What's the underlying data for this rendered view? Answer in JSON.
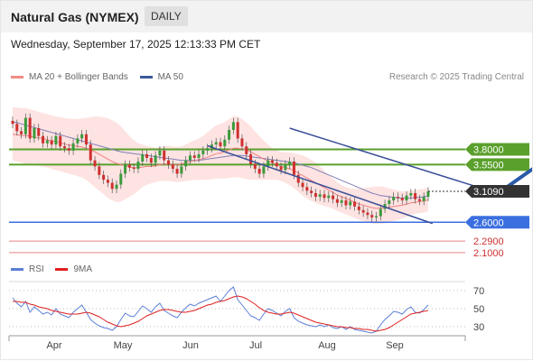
{
  "header": {
    "title": "Natural Gas (NYMEX)",
    "timeframe": "DAILY"
  },
  "datetime": "Wednesday, September 17, 2025 12:13:33 PM CET",
  "legend": {
    "items": [
      {
        "label": "MA 20 + Bollinger Bands",
        "color": "#f28b82"
      },
      {
        "label": "MA 50",
        "color": "#3c5a99"
      }
    ],
    "credit": "Research © 2025 Trading Central"
  },
  "rsi_legend": {
    "items": [
      {
        "label": "RSI",
        "color": "#5b7fd6"
      },
      {
        "label": "9MA",
        "color": "#e02020"
      }
    ]
  },
  "chart_data": [
    {
      "type": "candlestick",
      "title": "Natural Gas (NYMEX)",
      "ylim": [
        1.95,
        4.7
      ],
      "x_labels": [
        "Apr",
        "May",
        "Jun",
        "Jul",
        "Aug",
        "Sep"
      ],
      "last_price": "3.1090",
      "levels": [
        {
          "value": 3.8,
          "label": "3.8000",
          "kind": "resistance",
          "color": "#5aa02c"
        },
        {
          "value": 3.55,
          "label": "3.5500",
          "kind": "resistance",
          "color": "#5aa02c"
        },
        {
          "value": 2.6,
          "label": "2.6000",
          "kind": "support",
          "color": "#3b6fe0"
        },
        {
          "value": 2.29,
          "label": "2.2900",
          "kind": "support",
          "color": "#e05050"
        },
        {
          "value": 2.1,
          "label": "2.1000",
          "kind": "support",
          "color": "#e05050"
        }
      ],
      "close": [
        4.22,
        4.1,
        4.05,
        4.32,
        3.98,
        4.15,
        4.02,
        3.9,
        3.95,
        3.88,
        4.02,
        3.85,
        3.82,
        3.78,
        3.9,
        3.98,
        4.05,
        3.88,
        3.62,
        3.52,
        3.38,
        3.3,
        3.25,
        3.15,
        3.22,
        3.4,
        3.55,
        3.5,
        3.48,
        3.6,
        3.72,
        3.66,
        3.58,
        3.7,
        3.78,
        3.62,
        3.55,
        3.48,
        3.4,
        3.52,
        3.62,
        3.7,
        3.66,
        3.72,
        3.78,
        3.82,
        3.88,
        3.92,
        3.85,
        3.96,
        4.12,
        4.25,
        3.98,
        3.85,
        3.72,
        3.56,
        3.48,
        3.4,
        3.52,
        3.62,
        3.58,
        3.52,
        3.46,
        3.55,
        3.6,
        3.38,
        3.25,
        3.18,
        3.12,
        3.08,
        3.02,
        3.06,
        3.0,
        3.04,
        2.98,
        2.92,
        2.96,
        2.88,
        2.94,
        2.86,
        2.8,
        2.76,
        2.72,
        2.68,
        2.7,
        2.82,
        2.9,
        2.96,
        3.02,
        3.0,
        2.96,
        3.04,
        3.08,
        2.98,
        2.95,
        3.02,
        3.109
      ],
      "ma20": [
        4.05,
        4.04,
        4.03,
        4.03,
        4.02,
        4.0,
        3.99,
        3.98,
        3.96,
        3.94,
        3.93,
        3.91,
        3.89,
        3.87,
        3.86,
        3.85,
        3.84,
        3.82,
        3.79,
        3.76,
        3.72,
        3.68,
        3.64,
        3.6,
        3.57,
        3.55,
        3.53,
        3.51,
        3.5,
        3.5,
        3.51,
        3.52,
        3.52,
        3.53,
        3.55,
        3.56,
        3.56,
        3.55,
        3.55,
        3.56,
        3.58,
        3.6,
        3.62,
        3.63,
        3.65,
        3.67,
        3.7,
        3.73,
        3.74,
        3.76,
        3.79,
        3.82,
        3.82,
        3.81,
        3.79,
        3.76,
        3.72,
        3.68,
        3.64,
        3.61,
        3.58,
        3.55,
        3.52,
        3.5,
        3.48,
        3.45,
        3.41,
        3.37,
        3.33,
        3.29,
        3.25,
        3.21,
        3.17,
        3.13,
        3.09,
        3.05,
        3.02,
        2.99,
        2.96,
        2.93,
        2.9,
        2.88,
        2.86,
        2.84,
        2.83,
        2.83,
        2.84,
        2.85,
        2.86,
        2.87,
        2.88,
        2.9,
        2.92,
        2.93,
        2.94,
        2.95,
        2.97
      ],
      "bb_upper": [
        4.5,
        4.49,
        4.48,
        4.48,
        4.46,
        4.44,
        4.42,
        4.4,
        4.38,
        4.36,
        4.34,
        4.33,
        4.32,
        4.31,
        4.3,
        4.3,
        4.31,
        4.32,
        4.33,
        4.34,
        4.34,
        4.33,
        4.31,
        4.28,
        4.24,
        4.18,
        4.1,
        4.02,
        3.95,
        3.9,
        3.88,
        3.86,
        3.84,
        3.83,
        3.84,
        3.86,
        3.86,
        3.85,
        3.84,
        3.85,
        3.88,
        3.92,
        3.95,
        3.98,
        4.02,
        4.08,
        4.14,
        4.2,
        4.22,
        4.25,
        4.3,
        4.35,
        4.34,
        4.3,
        4.24,
        4.18,
        4.1,
        4.02,
        3.95,
        3.88,
        3.82,
        3.78,
        3.76,
        3.75,
        3.75,
        3.74,
        3.72,
        3.7,
        3.67,
        3.63,
        3.58,
        3.52,
        3.45,
        3.38,
        3.32,
        3.26,
        3.21,
        3.18,
        3.16,
        3.15,
        3.15,
        3.16,
        3.17,
        3.18,
        3.19,
        3.19,
        3.18,
        3.16,
        3.14,
        3.12,
        3.11,
        3.11,
        3.12,
        3.13,
        3.14,
        3.15,
        3.17
      ],
      "bb_lower": [
        3.62,
        3.6,
        3.58,
        3.56,
        3.55,
        3.54,
        3.53,
        3.52,
        3.5,
        3.48,
        3.46,
        3.44,
        3.42,
        3.4,
        3.38,
        3.36,
        3.34,
        3.3,
        3.24,
        3.18,
        3.12,
        3.06,
        3.0,
        2.96,
        2.93,
        2.94,
        2.98,
        3.02,
        3.06,
        3.12,
        3.18,
        3.22,
        3.24,
        3.26,
        3.28,
        3.28,
        3.28,
        3.27,
        3.26,
        3.27,
        3.28,
        3.29,
        3.3,
        3.3,
        3.3,
        3.3,
        3.31,
        3.32,
        3.32,
        3.32,
        3.33,
        3.34,
        3.34,
        3.33,
        3.31,
        3.3,
        3.3,
        3.3,
        3.3,
        3.3,
        3.3,
        3.3,
        3.28,
        3.25,
        3.21,
        3.16,
        3.1,
        3.04,
        2.99,
        2.95,
        2.92,
        2.89,
        2.87,
        2.85,
        2.82,
        2.79,
        2.76,
        2.73,
        2.7,
        2.67,
        2.64,
        2.62,
        2.6,
        2.58,
        2.57,
        2.57,
        2.58,
        2.6,
        2.62,
        2.64,
        2.66,
        2.69,
        2.72,
        2.74,
        2.75,
        2.76,
        2.78
      ],
      "ma50": [
        4.25,
        4.24,
        4.22,
        4.2,
        4.18,
        4.16,
        4.14,
        4.12,
        4.1,
        4.08,
        4.06,
        4.04,
        4.02,
        4.0,
        3.98,
        3.96,
        3.94,
        3.92,
        3.9,
        3.88,
        3.86,
        3.84,
        3.82,
        3.8,
        3.78,
        3.76,
        3.75,
        3.74,
        3.73,
        3.72,
        3.71,
        3.7,
        3.69,
        3.68,
        3.67,
        3.66,
        3.65,
        3.64,
        3.63,
        3.62,
        3.62,
        3.62,
        3.62,
        3.62,
        3.63,
        3.64,
        3.65,
        3.66,
        3.67,
        3.68,
        3.69,
        3.7,
        3.7,
        3.7,
        3.69,
        3.68,
        3.67,
        3.66,
        3.65,
        3.64,
        3.63,
        3.62,
        3.61,
        3.6,
        3.59,
        3.58,
        3.56,
        3.54,
        3.52,
        3.5,
        3.47,
        3.44,
        3.41,
        3.38,
        3.35,
        3.32,
        3.29,
        3.26,
        3.23,
        3.2,
        3.17,
        3.14,
        3.11,
        3.08,
        3.06,
        3.04,
        3.03,
        3.02,
        3.01,
        3.0,
        3.0,
        3.0,
        3.0,
        3.01,
        3.01,
        3.02,
        3.03
      ],
      "upper_channel": [
        [
          64,
          4.15
        ],
        [
          111,
          3.1
        ]
      ],
      "lower_channel": [
        [
          45,
          3.86
        ],
        [
          97,
          2.58
        ]
      ],
      "projection": [
        [
          113,
          3.12
        ],
        [
          126,
          3.8
        ]
      ]
    },
    {
      "type": "line",
      "title": "RSI",
      "ylim": [
        20,
        80
      ],
      "y_ticks": [
        70,
        50,
        30
      ],
      "rsi": [
        62,
        56,
        52,
        58,
        46,
        52,
        48,
        44,
        46,
        43,
        50,
        44,
        42,
        40,
        46,
        50,
        54,
        46,
        38,
        34,
        31,
        29,
        28,
        26,
        30,
        38,
        45,
        42,
        41,
        47,
        53,
        50,
        46,
        52,
        56,
        48,
        45,
        42,
        40,
        46,
        51,
        55,
        53,
        56,
        58,
        60,
        62,
        64,
        58,
        64,
        70,
        74,
        60,
        54,
        48,
        42,
        40,
        37,
        44,
        50,
        48,
        45,
        42,
        47,
        50,
        40,
        36,
        34,
        32,
        31,
        30,
        32,
        30,
        32,
        29,
        28,
        30,
        27,
        30,
        27,
        26,
        25,
        24,
        23,
        25,
        32,
        38,
        42,
        47,
        46,
        44,
        49,
        52,
        46,
        45,
        49,
        54
      ],
      "rsi_ma": [
        58,
        58,
        57,
        57,
        55,
        54,
        52,
        51,
        50,
        48,
        47,
        46,
        45,
        44,
        44,
        44,
        45,
        46,
        45,
        43,
        41,
        38,
        35,
        33,
        31,
        30,
        31,
        32,
        34,
        36,
        39,
        42,
        44,
        46,
        48,
        49,
        49,
        48,
        47,
        46,
        46,
        47,
        48,
        50,
        52,
        54,
        55,
        57,
        58,
        59,
        61,
        63,
        64,
        63,
        61,
        58,
        55,
        51,
        48,
        46,
        45,
        44,
        44,
        45,
        46,
        45,
        43,
        41,
        39,
        37,
        35,
        34,
        33,
        32,
        31,
        30,
        30,
        29,
        29,
        28,
        28,
        27,
        27,
        26,
        25,
        26,
        27,
        29,
        32,
        35,
        38,
        41,
        44,
        45,
        46,
        47,
        48
      ]
    }
  ]
}
